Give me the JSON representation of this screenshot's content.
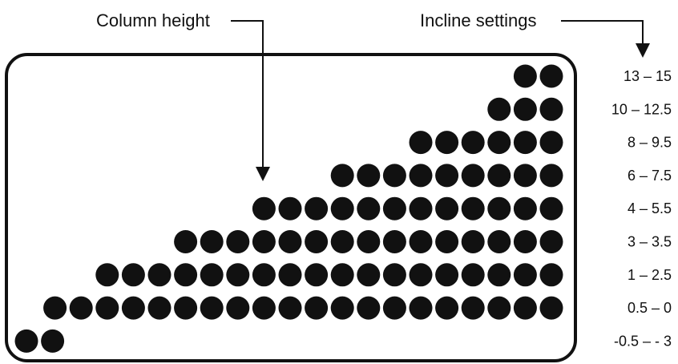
{
  "callouts": {
    "column_height": "Column height",
    "incline_settings": "Incline settings"
  },
  "dot_color": "#111111",
  "frame_color": "#111111",
  "levels": [
    {
      "label": "13 – 15",
      "dots": 2
    },
    {
      "label": "10 – 12.5",
      "dots": 3
    },
    {
      "label": "8 – 9.5",
      "dots": 6
    },
    {
      "label": "6 – 7.5",
      "dots": 9
    },
    {
      "label": "4 – 5.5",
      "dots": 12
    },
    {
      "label": "3 – 3.5",
      "dots": 15
    },
    {
      "label": "1 – 2.5",
      "dots": 18
    },
    {
      "label": "0.5 – 0",
      "dots": 20
    },
    {
      "label": "-0.5 – - 3",
      "dots": 2,
      "align": "left"
    }
  ]
}
